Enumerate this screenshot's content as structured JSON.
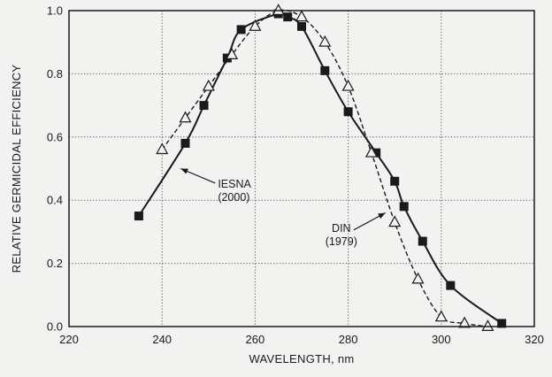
{
  "chart_data": {
    "type": "line",
    "xlabel": "WAVELENGTH, nm",
    "ylabel": "RELATIVE GERMICIDAL EFFICIENCY",
    "xlim": [
      220,
      320
    ],
    "ylim": [
      0,
      1.0
    ],
    "xticks": [
      220,
      240,
      260,
      280,
      300,
      320
    ],
    "yticks": [
      0.0,
      0.2,
      0.4,
      0.6,
      0.8,
      1.0
    ],
    "x_tick_labels": [
      "220",
      "240",
      "260",
      "280",
      "300",
      "320"
    ],
    "y_tick_labels": [
      "0.0",
      "0.2",
      "0.4",
      "0.6",
      "0.8",
      "1.0"
    ],
    "grid": true,
    "colors": {
      "ink": "#1a1a1a",
      "grid": "#555555",
      "background": "#f2f2f0"
    },
    "series": [
      {
        "name": "IESNA (2000)",
        "line_style": "solid",
        "marker": "filled-square",
        "points": [
          {
            "x": 235,
            "y": 0.35
          },
          {
            "x": 245,
            "y": 0.58
          },
          {
            "x": 249,
            "y": 0.7
          },
          {
            "x": 254,
            "y": 0.85
          },
          {
            "x": 257,
            "y": 0.94
          },
          {
            "x": 265,
            "y": 0.99
          },
          {
            "x": 267,
            "y": 0.98
          },
          {
            "x": 270,
            "y": 0.95
          },
          {
            "x": 275,
            "y": 0.81
          },
          {
            "x": 280,
            "y": 0.68
          },
          {
            "x": 286,
            "y": 0.55
          },
          {
            "x": 290,
            "y": 0.46
          },
          {
            "x": 292,
            "y": 0.38
          },
          {
            "x": 296,
            "y": 0.27
          },
          {
            "x": 302,
            "y": 0.13
          },
          {
            "x": 313,
            "y": 0.01
          }
        ]
      },
      {
        "name": "DIN (1979)",
        "line_style": "dashed",
        "marker": "open-triangle",
        "points": [
          {
            "x": 240,
            "y": 0.56
          },
          {
            "x": 245,
            "y": 0.66
          },
          {
            "x": 250,
            "y": 0.76
          },
          {
            "x": 255,
            "y": 0.86
          },
          {
            "x": 260,
            "y": 0.95
          },
          {
            "x": 265,
            "y": 1.0
          },
          {
            "x": 270,
            "y": 0.98
          },
          {
            "x": 275,
            "y": 0.9
          },
          {
            "x": 280,
            "y": 0.76
          },
          {
            "x": 285,
            "y": 0.55
          },
          {
            "x": 290,
            "y": 0.33
          },
          {
            "x": 295,
            "y": 0.15
          },
          {
            "x": 300,
            "y": 0.03
          },
          {
            "x": 305,
            "y": 0.01
          },
          {
            "x": 310,
            "y": 0.0
          }
        ]
      }
    ],
    "annotations": [
      {
        "text_lines": [
          "IESNA",
          "(2000)"
        ],
        "series": "IESNA (2000)",
        "label_anchor": {
          "x": 252,
          "y": 0.44
        },
        "arrow_to": {
          "x": 244,
          "y": 0.5
        }
      },
      {
        "text_lines": [
          "DIN",
          "(1979)"
        ],
        "series": "DIN (1979)",
        "label_anchor": {
          "x": 277,
          "y": 0.3
        },
        "arrow_to": {
          "x": 288,
          "y": 0.36
        }
      }
    ]
  }
}
